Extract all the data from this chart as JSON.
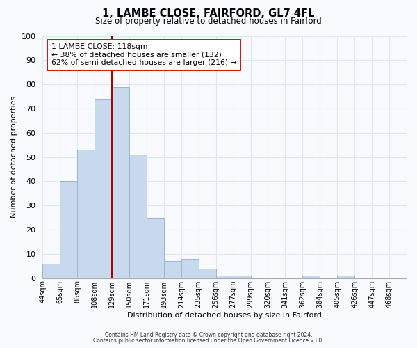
{
  "title": "1, LAMBE CLOSE, FAIRFORD, GL7 4FL",
  "subtitle": "Size of property relative to detached houses in Fairford",
  "xlabel": "Distribution of detached houses by size in Fairford",
  "ylabel": "Number of detached properties",
  "bar_color": "#c8d9ee",
  "bar_edge_color": "#9ab5d5",
  "bin_labels": [
    "44sqm",
    "65sqm",
    "86sqm",
    "108sqm",
    "129sqm",
    "150sqm",
    "171sqm",
    "193sqm",
    "214sqm",
    "235sqm",
    "256sqm",
    "277sqm",
    "299sqm",
    "320sqm",
    "341sqm",
    "362sqm",
    "384sqm",
    "405sqm",
    "426sqm",
    "447sqm",
    "468sqm"
  ],
  "bar_heights": [
    6,
    40,
    53,
    74,
    79,
    51,
    25,
    7,
    8,
    4,
    1,
    1,
    0,
    0,
    0,
    1,
    0,
    1,
    0,
    0,
    0
  ],
  "ylim": [
    0,
    100
  ],
  "yticks": [
    0,
    10,
    20,
    30,
    40,
    50,
    60,
    70,
    80,
    90,
    100
  ],
  "vline_color": "#aa0000",
  "annotation_text": "1 LAMBE CLOSE: 118sqm\n← 38% of detached houses are smaller (132)\n62% of semi-detached houses are larger (216) →",
  "annotation_box_color": "#ffffff",
  "annotation_box_edge": "#cc0000",
  "footnote1": "Contains HM Land Registry data © Crown copyright and database right 2024.",
  "footnote2": "Contains public sector information licensed under the Open Government Licence v3.0.",
  "background_color": "#f8fafd",
  "plot_bg_color": "#f8fafd",
  "grid_color": "#dde8f5"
}
